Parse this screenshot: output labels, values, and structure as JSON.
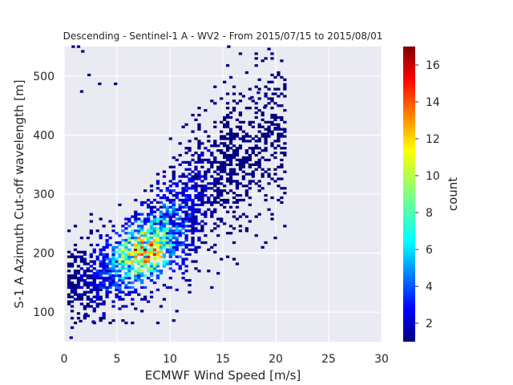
{
  "chart_data": {
    "type": "heatmap",
    "title": "Descending - Sentinel-1 A - WV2 - From 2015/07/15 to 2015/08/01",
    "xlabel": "ECMWF Wind Speed [m/s]",
    "ylabel": "S-1 A Azimuth Cut-off wavelength [m]",
    "xlim": [
      0,
      30
    ],
    "ylim": [
      50,
      550
    ],
    "xticks": [
      0,
      5,
      10,
      15,
      20,
      25,
      30
    ],
    "yticks": [
      100,
      200,
      300,
      400,
      500
    ],
    "grid": true,
    "bin_size": {
      "x": 0.3,
      "y": 4
    },
    "colorbar": {
      "label": "count",
      "range": [
        1,
        17
      ],
      "ticks": [
        2,
        4,
        6,
        8,
        10,
        12,
        14,
        16
      ],
      "colormap": "jet"
    },
    "density_ridge": {
      "description_points": [
        {
          "x": 1.0,
          "y": 150,
          "spread_y": 35
        },
        {
          "x": 3.5,
          "y": 165,
          "spread_y": 40
        },
        {
          "x": 6.0,
          "y": 190,
          "spread_y": 40
        },
        {
          "x": 8.5,
          "y": 220,
          "spread_y": 45
        },
        {
          "x": 11.0,
          "y": 260,
          "spread_y": 55
        },
        {
          "x": 14.0,
          "y": 320,
          "spread_y": 65
        },
        {
          "x": 17.0,
          "y": 370,
          "spread_y": 70
        },
        {
          "x": 20.0,
          "y": 410,
          "spread_y": 70
        }
      ],
      "peak": {
        "x": 7.5,
        "y": 200,
        "count": 17
      }
    },
    "outliers": [
      {
        "x": 0.5,
        "y": 55
      },
      {
        "x": 0.7,
        "y": 548
      },
      {
        "x": 1.2,
        "y": 548
      },
      {
        "x": 1.6,
        "y": 540
      },
      {
        "x": 1.5,
        "y": 472
      },
      {
        "x": 2.2,
        "y": 500
      },
      {
        "x": 3.2,
        "y": 485
      },
      {
        "x": 4.7,
        "y": 485
      },
      {
        "x": 15.4,
        "y": 548
      },
      {
        "x": 19.6,
        "y": 468
      },
      {
        "x": 19.8,
        "y": 410
      },
      {
        "x": 18.2,
        "y": 470
      },
      {
        "x": 17.6,
        "y": 462
      },
      {
        "x": 18.8,
        "y": 445
      },
      {
        "x": 19.1,
        "y": 400
      },
      {
        "x": 1.9,
        "y": 95
      },
      {
        "x": 2.6,
        "y": 82
      },
      {
        "x": 1.4,
        "y": 83
      }
    ]
  }
}
